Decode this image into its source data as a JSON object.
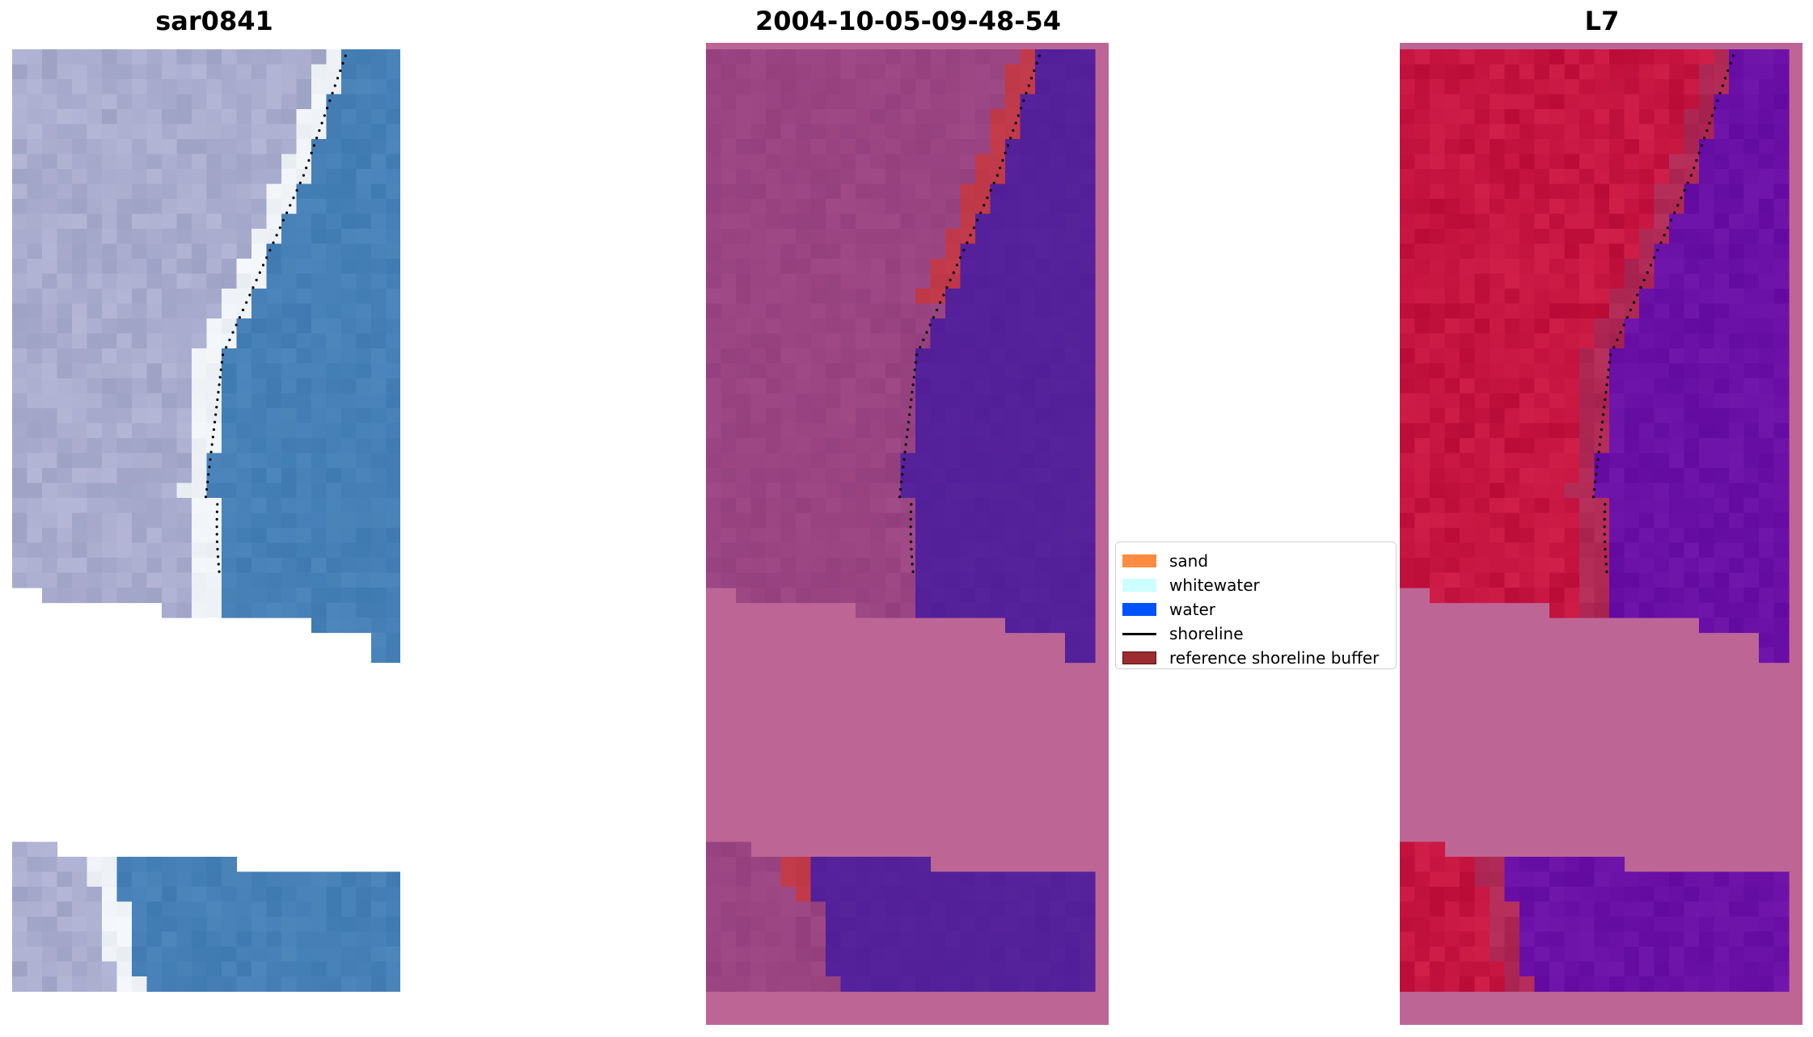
{
  "panels": [
    {
      "title": "sar0841",
      "style": "rgb"
    },
    {
      "title": "2004-10-05-09-48-54",
      "style": "classified"
    },
    {
      "title": "L7",
      "style": "mndwi"
    }
  ],
  "legend": {
    "items": [
      {
        "label": "sand",
        "type": "patch",
        "color": "#ff8c40"
      },
      {
        "label": "whitewater",
        "type": "patch",
        "color": "#ccffff"
      },
      {
        "label": "water",
        "type": "patch",
        "color": "#0052ff"
      },
      {
        "label": "shoreline",
        "type": "line",
        "color": "#000000"
      },
      {
        "label": "reference shoreline buffer",
        "type": "patch",
        "color": "#9b2d30",
        "edge": "#5a1010"
      }
    ]
  },
  "colors": {
    "background_magenta": "#bd6696",
    "class_land": "#9a4582",
    "class_water": "#54219a",
    "class_buffer": "#c13a4a",
    "mndwi_land": "#c51540",
    "mndwi_water": "#6a10a6",
    "rgb_land": "#a9acce",
    "rgb_water": "#4680b6",
    "rgb_white": "#eef2f6"
  }
}
